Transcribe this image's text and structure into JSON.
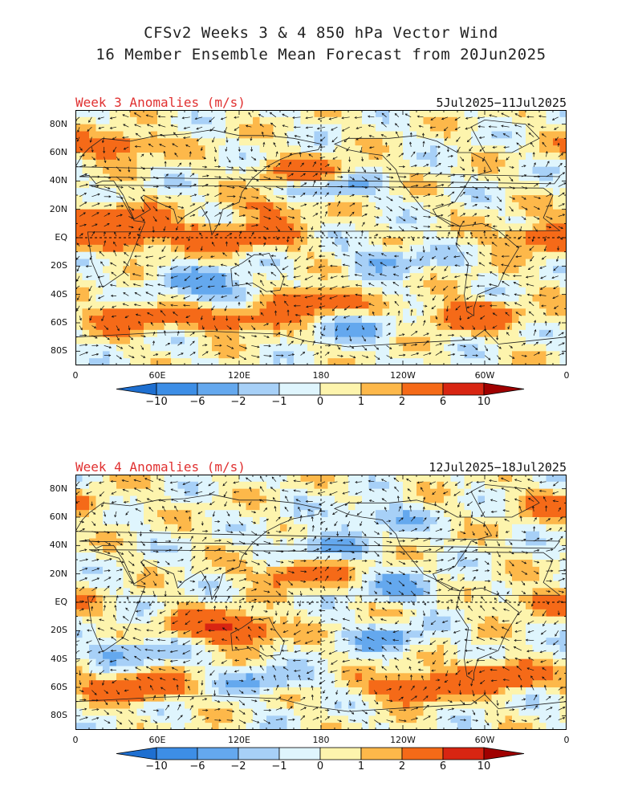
{
  "figure": {
    "title_line1": "CFSv2 Weeks 3 & 4 850 hPa Vector Wind",
    "title_line2": "16 Member Ensemble Mean Forecast from 20Jun2025"
  },
  "colorbar": {
    "labels": [
      "−10",
      "−6",
      "−2",
      "−1",
      "0",
      "1",
      "2",
      "6",
      "10"
    ],
    "colors": [
      "#1e6fd0",
      "#3d8ee6",
      "#64a8ee",
      "#a7d0f7",
      "#dff5fd",
      "#fdf4ad",
      "#fdb84a",
      "#f56a18",
      "#d82512",
      "#a00000"
    ]
  },
  "chart_data": [
    {
      "type": "heatmap",
      "title": "Week 3 Anomalies (m/s)",
      "date_range": "5Jul2025−11Jul2025",
      "x_ticks": [
        "0",
        "60E",
        "120E",
        "180",
        "120W",
        "60W",
        "0"
      ],
      "y_ticks": [
        "80N",
        "60N",
        "40N",
        "20N",
        "EQ",
        "20S",
        "40S",
        "60S",
        "80S"
      ],
      "lat_range": [
        -90,
        90
      ],
      "lon_range": [
        0,
        360
      ],
      "units": "m/s",
      "anomaly_features": [
        {
          "lon": 30,
          "lat": 15,
          "value": 3
        },
        {
          "lon": 40,
          "lat": 0,
          "value": 3
        },
        {
          "lon": 100,
          "lat": 0,
          "value": 3
        },
        {
          "lon": 140,
          "lat": 0,
          "value": 2
        },
        {
          "lon": 170,
          "lat": 47,
          "value": 3
        },
        {
          "lon": 145,
          "lat": 22,
          "value": 2
        },
        {
          "lon": 340,
          "lat": 0,
          "value": 3
        },
        {
          "lon": 90,
          "lat": -30,
          "value": -2
        },
        {
          "lon": 120,
          "lat": -40,
          "value": -2
        },
        {
          "lon": 230,
          "lat": -15,
          "value": -2
        },
        {
          "lon": 40,
          "lat": -57,
          "value": 3
        },
        {
          "lon": 120,
          "lat": -58,
          "value": 3
        },
        {
          "lon": 170,
          "lat": -45,
          "value": 4
        },
        {
          "lon": 290,
          "lat": -55,
          "value": 4
        },
        {
          "lon": 200,
          "lat": -63,
          "value": -2
        },
        {
          "lon": 190,
          "lat": 35,
          "value": -2
        },
        {
          "lon": 30,
          "lat": 65,
          "value": 3
        }
      ]
    },
    {
      "type": "heatmap",
      "title": "Week 4 Anomalies (m/s)",
      "date_range": "12Jul2025−18Jul2025",
      "x_ticks": [
        "0",
        "60E",
        "120E",
        "180",
        "120W",
        "60W",
        "0"
      ],
      "y_ticks": [
        "80N",
        "60N",
        "40N",
        "20N",
        "EQ",
        "20S",
        "40S",
        "60S",
        "80S"
      ],
      "lat_range": [
        -90,
        90
      ],
      "lon_range": [
        0,
        360
      ],
      "units": "m/s",
      "anomaly_features": [
        {
          "lon": 165,
          "lat": 20,
          "value": 3
        },
        {
          "lon": 100,
          "lat": -15,
          "value": 3
        },
        {
          "lon": 120,
          "lat": -20,
          "value": 3
        },
        {
          "lon": 340,
          "lat": 0,
          "value": 2
        },
        {
          "lon": 45,
          "lat": -60,
          "value": 4
        },
        {
          "lon": 250,
          "lat": -60,
          "value": 4
        },
        {
          "lon": 310,
          "lat": -52,
          "value": 4
        },
        {
          "lon": 40,
          "lat": -35,
          "value": -2
        },
        {
          "lon": 230,
          "lat": -25,
          "value": -2
        },
        {
          "lon": 180,
          "lat": 40,
          "value": -2
        },
        {
          "lon": 240,
          "lat": 10,
          "value": -2
        },
        {
          "lon": 140,
          "lat": -55,
          "value": -2
        },
        {
          "lon": 220,
          "lat": 60,
          "value": -2
        },
        {
          "lon": 350,
          "lat": 70,
          "value": 2
        }
      ]
    }
  ]
}
